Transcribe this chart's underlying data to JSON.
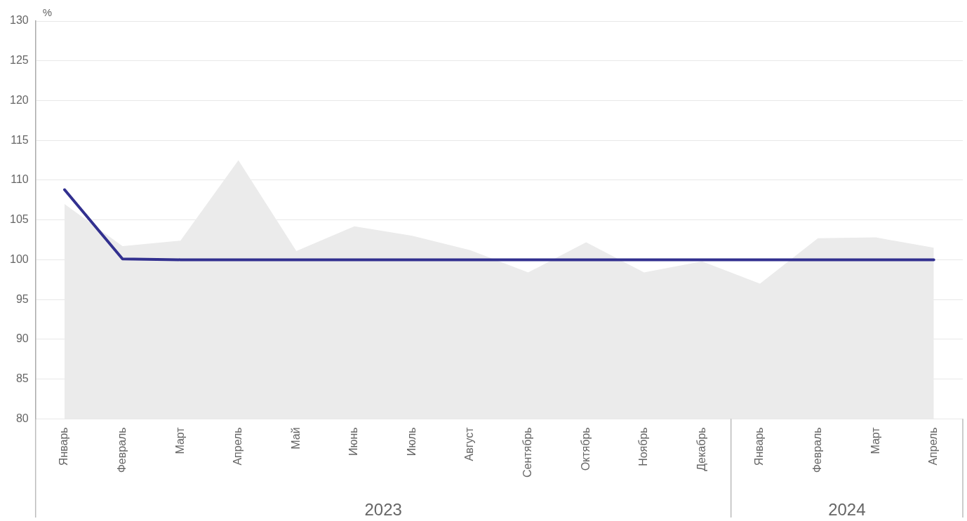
{
  "chart_data": {
    "type": "area",
    "ylabel": "%",
    "categories": [
      "Январь",
      "Февраль",
      "Март",
      "Апрель",
      "Май",
      "Июнь",
      "Июль",
      "Август",
      "Сентябрь",
      "Октябрь",
      "Ноябрь",
      "Декабрь",
      "Январь",
      "Февраль",
      "Март",
      "Апрель"
    ],
    "series": [
      {
        "color": "#ebebeb",
        "values": [
          107.0,
          101.7,
          102.4,
          112.5,
          101.1,
          104.2,
          103.0,
          101.2,
          98.4,
          102.2,
          98.4,
          99.8,
          97.0,
          102.7,
          102.8,
          101.5
        ]
      },
      {
        "type": "line",
        "color": "#32308f",
        "values": [
          108.8,
          100.1,
          100,
          100,
          100,
          100,
          100,
          100,
          100,
          100,
          100,
          100,
          100,
          100,
          100,
          100
        ]
      }
    ],
    "annotations": [
      "2023",
      "2024"
    ],
    "ylim": [
      80,
      130
    ],
    "yticks": [
      80,
      85,
      90,
      95,
      100,
      105,
      110,
      115,
      120,
      125,
      130
    ],
    "grid": "y",
    "legend": false
  }
}
